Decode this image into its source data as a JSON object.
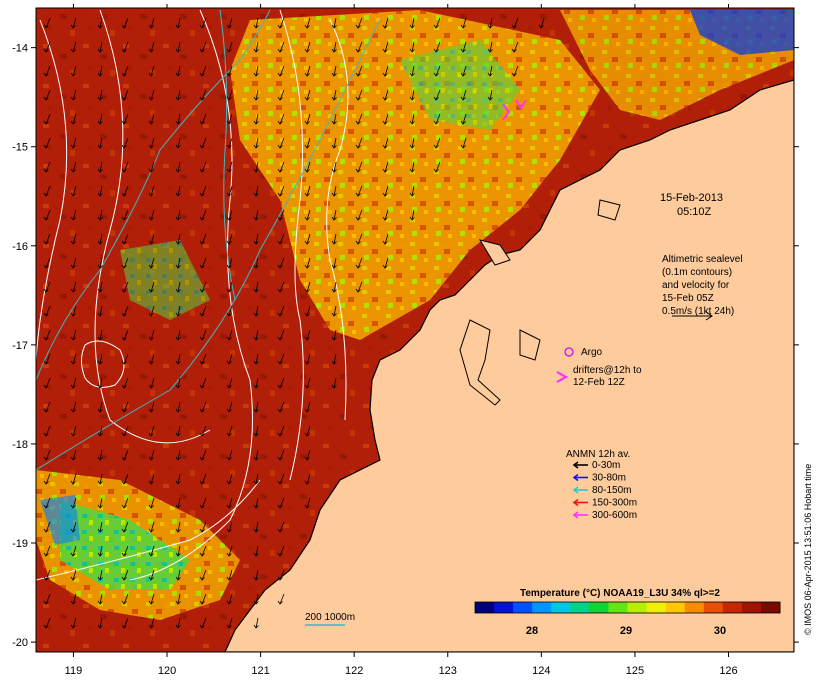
{
  "map": {
    "lon_ticks": [
      "119",
      "120",
      "121",
      "122",
      "123",
      "124",
      "125",
      "126"
    ],
    "lat_ticks": [
      "-14",
      "-15",
      "-16",
      "-17",
      "-18",
      "-19",
      "-20"
    ],
    "lon_range": [
      118.6,
      126.7
    ],
    "lat_range": [
      -20.1,
      -13.6
    ],
    "colors": {
      "land": "#fdcb9c",
      "sst_warm": "#b11f08",
      "coast": "#000000",
      "sealevel_contour": "#ffffff",
      "bathymetry_contour": "#3fb8c4",
      "argo": "#e020e0",
      "drifter": "#ff33ff"
    }
  },
  "annotations": {
    "date": "15-Feb-2013",
    "time": "05:10Z",
    "altimetry_lines": [
      "Altimetric sealevel",
      "(0.1m contours)",
      "and velocity for",
      "15-Feb 05Z",
      "0.5m/s (1kt 24h)"
    ],
    "argo_label": "Argo",
    "drifters_lines": [
      "drifters@12h to",
      "12-Feb 12Z"
    ],
    "bathymetry_label": "200  1000m"
  },
  "anmn_legend": {
    "title": "ANMN 12h av.",
    "items": [
      {
        "label": "0-30m",
        "color": "#000000"
      },
      {
        "label": "30-80m",
        "color": "#1010ff"
      },
      {
        "label": "80-150m",
        "color": "#20d0d0"
      },
      {
        "label": "150-300m",
        "color": "#ff1010"
      },
      {
        "label": "300-600m",
        "color": "#ff33ff"
      }
    ]
  },
  "colorbar": {
    "title": "Temperature (°C) NOAA19_L3U 34% ql>=2",
    "ticks": [
      "28",
      "29",
      "30"
    ],
    "colors": [
      "#00007a",
      "#0014d2",
      "#0050ff",
      "#0096ff",
      "#00c8e6",
      "#00d28c",
      "#14d232",
      "#64e614",
      "#b4f000",
      "#f0f000",
      "#ffc800",
      "#ff8c00",
      "#e65000",
      "#c82800",
      "#a01400",
      "#7a0a00"
    ]
  },
  "credit": "© IMOS 06-Apr-2015 13:51:06 Hobart time"
}
